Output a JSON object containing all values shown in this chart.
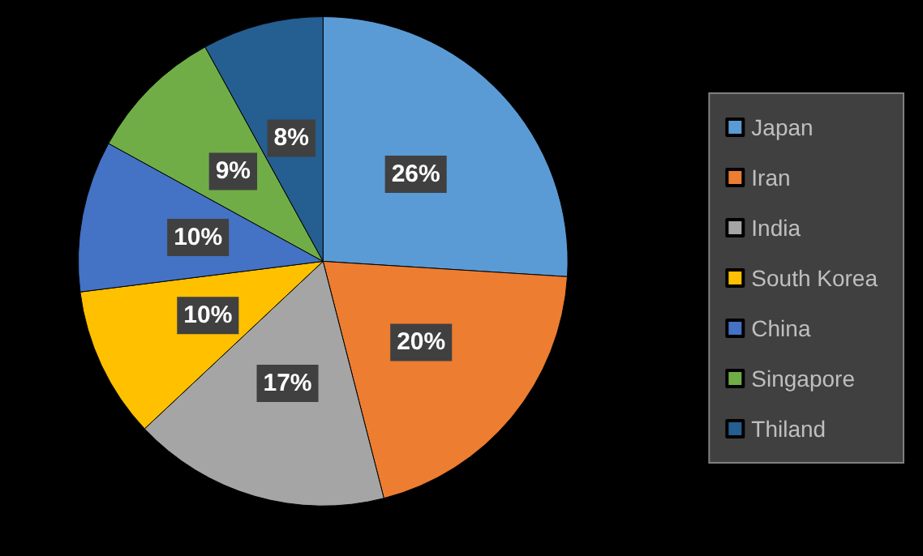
{
  "chart_data": {
    "type": "pie",
    "categories": [
      "Japan",
      "Iran",
      "India",
      "South Korea",
      "China",
      "Singapore",
      "Thiland"
    ],
    "values": [
      26,
      20,
      17,
      10,
      10,
      9,
      8
    ],
    "value_labels": [
      "26%",
      "20%",
      "17%",
      "10%",
      "10%",
      "9%",
      "8%"
    ],
    "colors": [
      "#5b9bd5",
      "#ed7d31",
      "#a5a5a5",
      "#ffc000",
      "#4472c4",
      "#70ad47",
      "#255e91"
    ],
    "legend": "right"
  }
}
